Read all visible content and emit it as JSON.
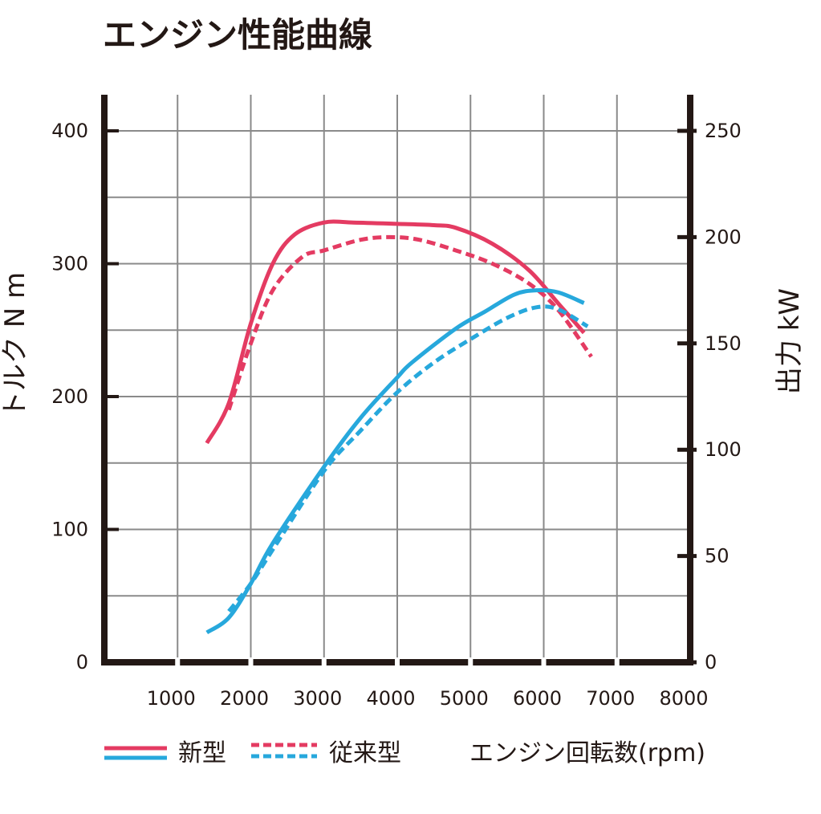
{
  "colors": {
    "new_model": "#e43b62",
    "old_model": "#e43b62",
    "power": "#27a8dc",
    "axis": "#231815",
    "grid": "#8a8a8a"
  },
  "chart_data": {
    "type": "line",
    "title": "エンジン性能曲線",
    "xlabel": "エンジン回転数(rpm)",
    "ylabel_left": "トルク N m",
    "ylabel_right": "出力 kW",
    "xlim": [
      0,
      8000
    ],
    "ylim_left": [
      0,
      400
    ],
    "ylim_right": [
      0,
      250
    ],
    "x_ticks": [
      "1000",
      "2000",
      "3000",
      "4000",
      "5000",
      "6000",
      "7000",
      "8000"
    ],
    "y_left_ticks": [
      "0",
      "100",
      "200",
      "300",
      "400"
    ],
    "y_right_ticks": [
      "0",
      "50",
      "100",
      "150",
      "200",
      "250"
    ],
    "grid": true,
    "legend": {
      "new_label": "新型",
      "old_label": "従来型"
    },
    "series": [
      {
        "key": "torque_new",
        "axis": "left",
        "style": "solid",
        "color": "#e43b62",
        "x": [
          1400,
          1700,
          2000,
          2300,
          2600,
          3000,
          3400,
          4000,
          4500,
          4800,
          5300,
          5800,
          6200,
          6550
        ],
        "y": [
          165,
          195,
          255,
          300,
          322,
          331,
          331,
          330,
          329,
          327,
          315,
          295,
          270,
          248
        ]
      },
      {
        "key": "torque_old",
        "axis": "left",
        "style": "dashed",
        "color": "#e43b62",
        "x": [
          1700,
          2000,
          2300,
          2700,
          3000,
          3500,
          3900,
          4300,
          4800,
          5300,
          5800,
          6200,
          6650
        ],
        "y": [
          190,
          240,
          280,
          305,
          310,
          318,
          320,
          318,
          310,
          300,
          285,
          265,
          230
        ]
      },
      {
        "key": "power_new",
        "axis": "right",
        "style": "solid",
        "color": "#27a8dc",
        "x": [
          1400,
          1700,
          2000,
          2300,
          3000,
          3500,
          4000,
          4200,
          4800,
          5200,
          5600,
          5900,
          6200,
          6550
        ],
        "y": [
          14,
          21,
          37,
          56,
          92,
          115,
          134,
          141,
          157,
          165,
          173,
          175,
          174,
          169
        ]
      },
      {
        "key": "power_old",
        "axis": "right",
        "style": "dashed",
        "color": "#27a8dc",
        "x": [
          1700,
          2000,
          2300,
          3000,
          3500,
          4000,
          4500,
          5000,
          5500,
          5900,
          6200,
          6600
        ],
        "y": [
          24,
          37,
          53,
          90,
          109,
          127,
          141,
          152,
          162,
          167,
          166,
          158
        ]
      }
    ]
  }
}
